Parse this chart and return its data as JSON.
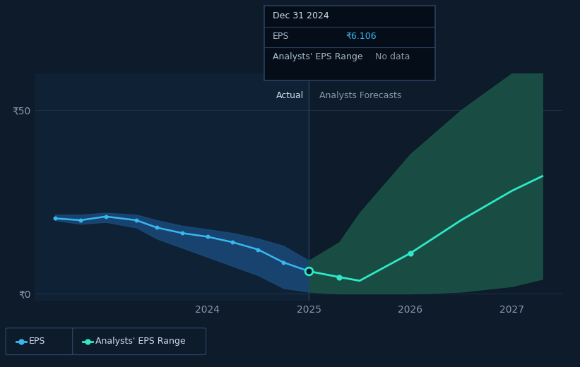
{
  "bg_color": "#0d1b2a",
  "plot_bg_color": "#0d1b2a",
  "actual_bg_color": "#0f2235",
  "grid_color": "#1e3048",
  "axis_label_color": "#8899aa",
  "text_color": "#ccddee",
  "actual_label": "Actual",
  "forecast_label": "Analysts Forecasts",
  "eps_actual_x": [
    2022.5,
    2022.75,
    2023.0,
    2023.3,
    2023.5,
    2023.75,
    2024.0,
    2024.25,
    2024.5,
    2024.75,
    2025.0
  ],
  "eps_actual_y": [
    20.5,
    20.0,
    21.0,
    20.0,
    18.0,
    16.5,
    15.5,
    14.0,
    12.0,
    8.5,
    6.1
  ],
  "eps_range_actual_upper": [
    21.5,
    21.5,
    22.0,
    21.5,
    20.0,
    18.5,
    17.5,
    16.5,
    15.0,
    13.0,
    9.0
  ],
  "eps_range_actual_lower": [
    20.0,
    19.0,
    19.5,
    18.0,
    15.0,
    12.5,
    10.0,
    7.5,
    5.0,
    1.5,
    0.5
  ],
  "eps_forecast_x": [
    2025.0,
    2025.3,
    2025.5,
    2026.0,
    2026.5,
    2027.0,
    2027.3
  ],
  "eps_forecast_y": [
    6.1,
    4.5,
    3.5,
    11.0,
    20.0,
    28.0,
    32.0
  ],
  "eps_range_forecast_upper": [
    9.0,
    14.0,
    22.0,
    38.0,
    50.0,
    60.0,
    64.0
  ],
  "eps_range_forecast_lower": [
    0.5,
    0.0,
    0.0,
    0.0,
    0.5,
    2.0,
    4.0
  ],
  "eps_range_forecast_x": [
    2025.0,
    2025.3,
    2025.5,
    2026.0,
    2026.5,
    2027.0,
    2027.3
  ],
  "actual_line_color": "#38b8f0",
  "actual_fill_color": "#1a4a7a",
  "forecast_line_color": "#2ee8c8",
  "forecast_fill_color": "#1a5045",
  "divider_x": 2025.0,
  "ylim": [
    -2,
    60
  ],
  "xlim": [
    2022.3,
    2027.5
  ],
  "ytick_positions": [
    0,
    50
  ],
  "ytick_labels": [
    "₹0",
    "₹50"
  ],
  "xtick_positions": [
    2024,
    2025,
    2026,
    2027
  ],
  "xtick_labels": [
    "2024",
    "2025",
    "2026",
    "2027"
  ],
  "tooltip_title": "Dec 31 2024",
  "tooltip_eps_label": "EPS",
  "tooltip_eps_value": "₹6.106",
  "tooltip_range_label": "Analysts' EPS Range",
  "tooltip_range_value": "No data",
  "legend_eps_label": "EPS",
  "legend_range_label": "Analysts' EPS Range"
}
